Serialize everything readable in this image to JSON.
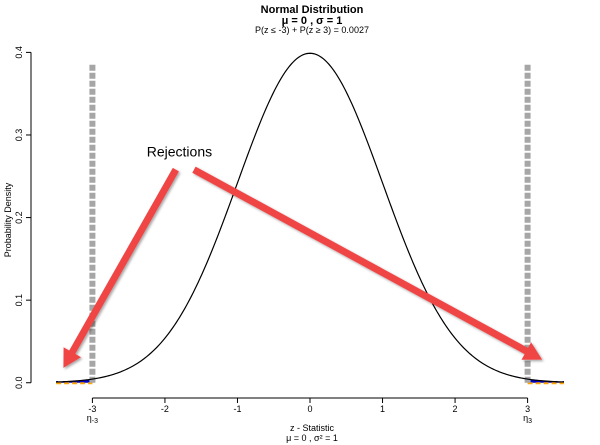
{
  "chart_data": {
    "type": "line",
    "title": "Normal Distribution",
    "subtitle": "μ = 0 , σ = 1",
    "probability_label": "P(z ≤ -3) + P(z ≥ 3) = 0.0027",
    "xlabel": "z - Statistic",
    "xlabel_sub": "μ = 0 , σ² = 1",
    "ylabel": "Probability Density",
    "xlim": [
      -3.75,
      3.75
    ],
    "ylim": [
      -0.01,
      0.415
    ],
    "x_ticks": [
      "-3",
      "-2",
      "-1",
      "0",
      "1",
      "2",
      "3"
    ],
    "y_ticks": [
      "0.0",
      "0.1",
      "0.2",
      "0.3",
      "0.4"
    ],
    "critical_values": [
      {
        "x": -3,
        "label": "η-3"
      },
      {
        "x": 3,
        "label": "η3"
      }
    ],
    "critical_line_top": 0.385,
    "curve": {
      "mean": 0,
      "sd": 1,
      "x_from": -3.5,
      "x_to": 3.5,
      "color": "#000000"
    },
    "rejection_regions": [
      {
        "from": -3.5,
        "to": -3.0
      },
      {
        "from": 3.0,
        "to": 3.5
      }
    ],
    "colors": {
      "curve": "#000000",
      "critical_line": "#a6a6a6",
      "rejection_fill": "#0000cc",
      "rejection_edge": "#ffa500",
      "arrow": "#f04545"
    },
    "annotation": {
      "text": "Rejections",
      "anchor_x": -1.8,
      "anchor_y": 0.274,
      "arrows": [
        {
          "from": [
            -1.85,
            0.258
          ],
          "to": [
            -3.4,
            0.018
          ]
        },
        {
          "from": [
            -1.6,
            0.258
          ],
          "to": [
            3.2,
            0.028
          ]
        }
      ]
    }
  }
}
